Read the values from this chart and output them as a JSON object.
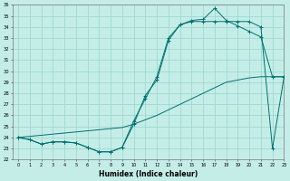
{
  "title": "",
  "xlabel": "Humidex (Indice chaleur)",
  "ylabel": "",
  "background_color": "#c5ede8",
  "grid_color": "#9dd8d0",
  "line_color": "#007070",
  "ylim": [
    22,
    36
  ],
  "xlim": [
    -0.5,
    23
  ],
  "yticks": [
    22,
    23,
    24,
    25,
    26,
    27,
    28,
    29,
    30,
    31,
    32,
    33,
    34,
    35,
    36
  ],
  "xticks": [
    0,
    1,
    2,
    3,
    4,
    5,
    6,
    7,
    8,
    9,
    10,
    11,
    12,
    13,
    14,
    15,
    16,
    17,
    18,
    19,
    20,
    21,
    22,
    23
  ],
  "line1_x": [
    0,
    1,
    2,
    3,
    4,
    5,
    6,
    7,
    8,
    9,
    10,
    11,
    12,
    13,
    14,
    15,
    16,
    17,
    18,
    19,
    20,
    21,
    22,
    23
  ],
  "line1_y": [
    24.0,
    23.8,
    23.4,
    23.6,
    23.6,
    23.5,
    23.1,
    22.7,
    22.7,
    23.1,
    25.2,
    27.8,
    29.2,
    32.8,
    34.2,
    34.6,
    34.7,
    35.7,
    34.6,
    34.1,
    33.6,
    33.1,
    29.5,
    29.5
  ],
  "line2_x": [
    0,
    1,
    2,
    3,
    4,
    5,
    6,
    7,
    8,
    9,
    10,
    11,
    12,
    13,
    14,
    15,
    16,
    17,
    18,
    19,
    20,
    21,
    22,
    23
  ],
  "line2_y": [
    24.0,
    23.8,
    23.4,
    23.6,
    23.6,
    23.5,
    23.1,
    22.7,
    22.7,
    23.1,
    25.5,
    27.5,
    29.5,
    33.0,
    34.2,
    34.5,
    34.5,
    34.5,
    34.5,
    34.5,
    34.5,
    34.0,
    23.0,
    29.5
  ],
  "line3_x": [
    0,
    1,
    2,
    3,
    4,
    5,
    6,
    7,
    8,
    9,
    10,
    11,
    12,
    13,
    14,
    15,
    16,
    17,
    18,
    19,
    20,
    21,
    22,
    23
  ],
  "line3_y": [
    24.0,
    24.1,
    24.2,
    24.3,
    24.4,
    24.5,
    24.6,
    24.7,
    24.8,
    24.9,
    25.2,
    25.6,
    26.0,
    26.5,
    27.0,
    27.5,
    28.0,
    28.5,
    29.0,
    29.2,
    29.4,
    29.5,
    29.5,
    29.5
  ]
}
